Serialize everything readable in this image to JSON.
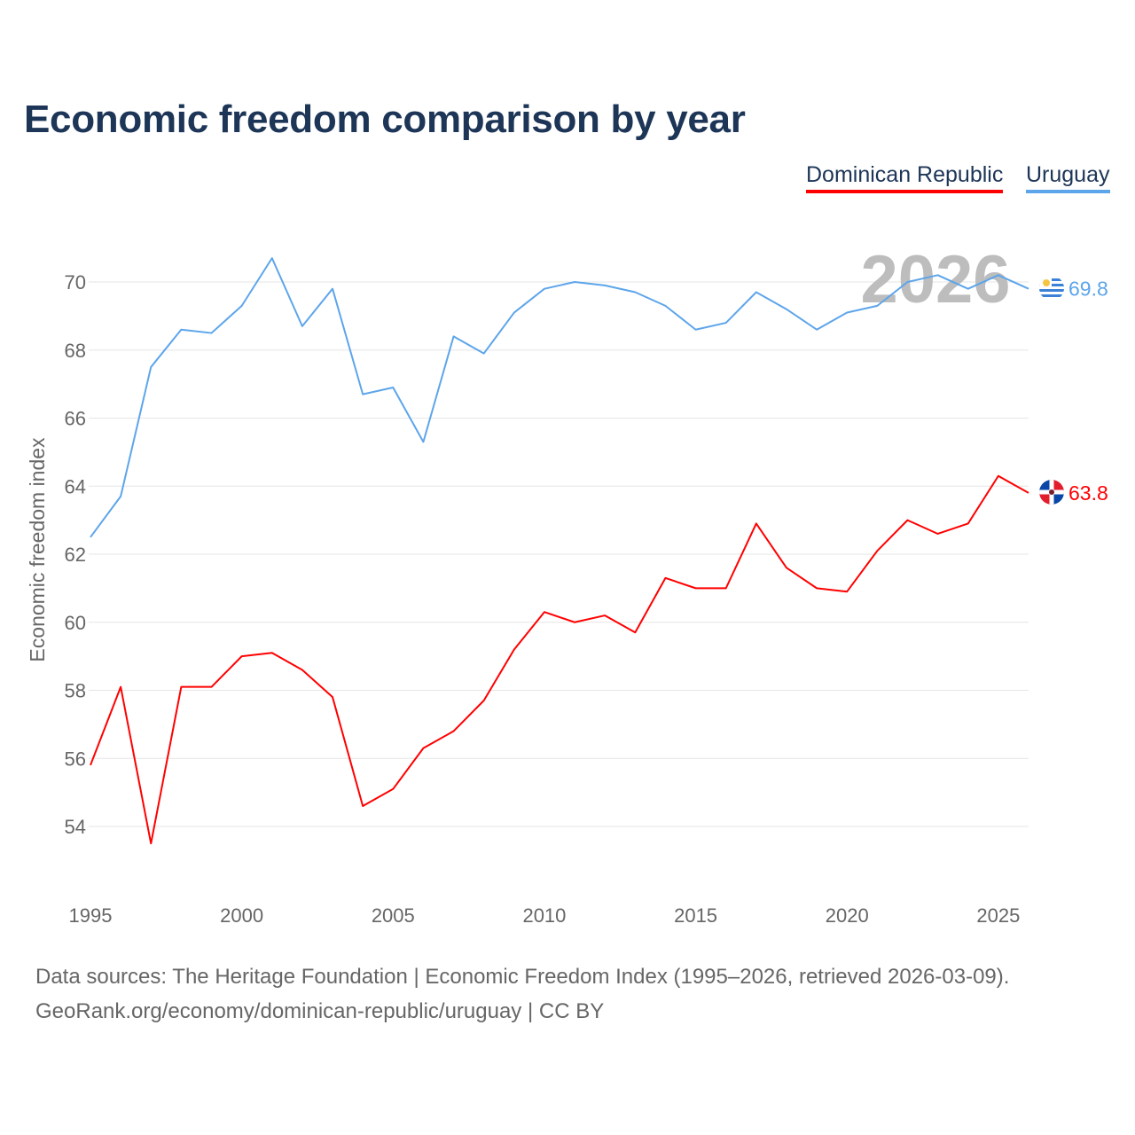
{
  "title": "Economic freedom comparison by year",
  "legend": [
    "Dominican Republic",
    "Uruguay"
  ],
  "year_watermark": "2026",
  "sources": [
    "Data sources: The Heritage Foundation | Economic Freedom Index (1995–2026, retrieved 2026-03-09).",
    "GeoRank.org/economy/dominican-republic/uruguay | CC BY"
  ],
  "colors": {
    "dominican_republic": "#ff0000",
    "uruguay": "#5da5ea"
  },
  "chart_data": {
    "type": "line",
    "title": "Economic freedom comparison by year",
    "xlabel": "",
    "ylabel": "Economic freedom index",
    "x": [
      1995,
      1996,
      1997,
      1998,
      1999,
      2000,
      2001,
      2002,
      2003,
      2004,
      2005,
      2006,
      2007,
      2008,
      2009,
      2010,
      2011,
      2012,
      2013,
      2014,
      2015,
      2016,
      2017,
      2018,
      2019,
      2020,
      2021,
      2022,
      2023,
      2024,
      2025,
      2026
    ],
    "xticks": [
      "1995",
      "2000",
      "2005",
      "2010",
      "2015",
      "2020",
      "2025"
    ],
    "yticks": [
      "54",
      "56",
      "58",
      "60",
      "62",
      "64",
      "66",
      "68",
      "70"
    ],
    "xlim": [
      1995,
      2026
    ],
    "ylim": [
      52.2,
      71.2
    ],
    "grid": true,
    "legend_position": "top-right",
    "series": [
      {
        "name": "Dominican Republic",
        "end_label": "63.8",
        "values": [
          55.8,
          58.1,
          53.5,
          58.1,
          58.1,
          59.0,
          59.1,
          58.6,
          57.8,
          54.6,
          55.1,
          56.3,
          56.8,
          57.7,
          59.2,
          60.3,
          60.0,
          60.2,
          59.7,
          61.3,
          61.0,
          61.0,
          62.9,
          61.6,
          61.0,
          60.9,
          62.1,
          63.0,
          62.6,
          62.9,
          64.3,
          63.8
        ]
      },
      {
        "name": "Uruguay",
        "end_label": "69.8",
        "values": [
          62.5,
          63.7,
          67.5,
          68.6,
          68.5,
          69.3,
          70.7,
          68.7,
          69.8,
          66.7,
          66.9,
          65.3,
          68.4,
          67.9,
          69.1,
          69.8,
          70.0,
          69.9,
          69.7,
          69.3,
          68.6,
          68.8,
          69.7,
          69.2,
          68.6,
          69.1,
          69.3,
          70.0,
          70.2,
          69.8,
          70.2,
          69.8
        ]
      }
    ]
  }
}
